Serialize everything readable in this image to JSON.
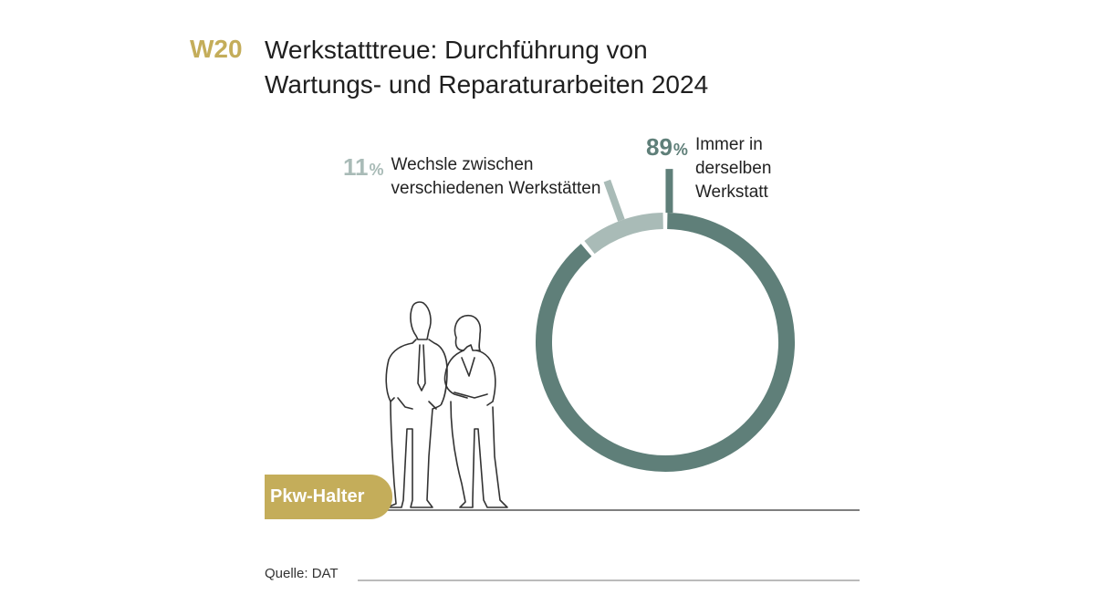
{
  "header": {
    "code": "W20",
    "title_line1": "Werkstatttreue: Durchführung von",
    "title_line2": "Wartungs- und Reparaturarbeiten 2024"
  },
  "badge": {
    "label": "Pkw-Halter"
  },
  "source": {
    "text": "Quelle: DAT"
  },
  "colors": {
    "accent": "#c4ad5a",
    "main_segment": "#5f7f79",
    "minor_segment": "#a9bbb7"
  },
  "chart_data": {
    "type": "pie",
    "title": "Werkstatttreue: Durchführung von Wartungs- und Reparaturarbeiten 2024",
    "categories": [
      "Wechsle zwischen verschiedenen Werkstätten",
      "Immer in derselben Werkstatt"
    ],
    "values": [
      11,
      89
    ],
    "unit": "%",
    "labels": [
      {
        "value": "11",
        "unit": "%",
        "line1": "Wechsle zwischen",
        "line2": "verschiedenen Werkstätten",
        "line3": "",
        "color": "#a9bbb7"
      },
      {
        "value": "89",
        "unit": "%",
        "line1": "Immer in",
        "line2": "derselben",
        "line3": "Werkstatt",
        "color": "#5f7f79"
      }
    ]
  }
}
